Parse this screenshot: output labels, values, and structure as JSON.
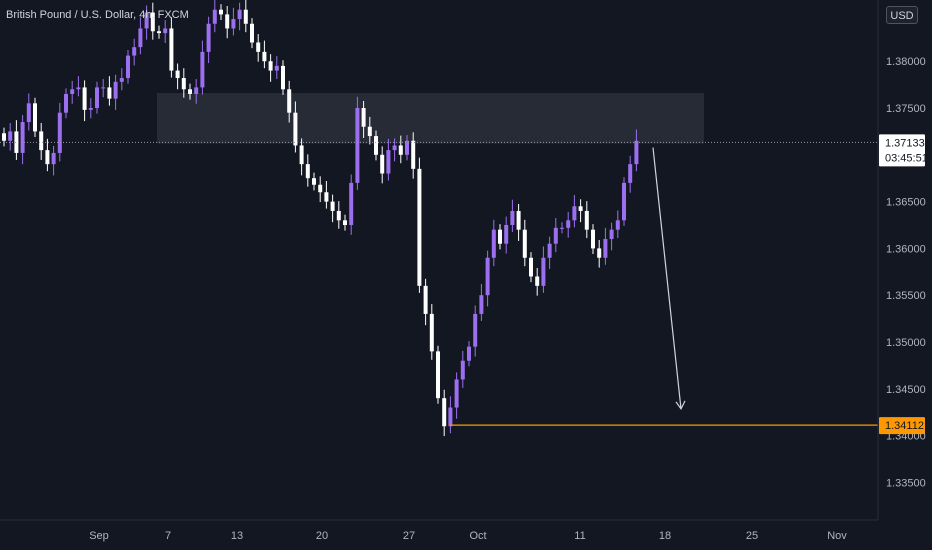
{
  "header": {
    "symbol_title": "British Pound / U.S. Dollar, 4h, FXCM",
    "currency": "USD"
  },
  "price_axis": {
    "ticks": [
      "1.38000",
      "1.37500",
      "1.36500",
      "1.36000",
      "1.35500",
      "1.35000",
      "1.34500",
      "1.34000",
      "1.33500"
    ],
    "current_price": "1.37133",
    "countdown": "03:45:51",
    "level_label": "1.34112"
  },
  "time_axis": {
    "ticks": [
      "Sep",
      "7",
      "13",
      "20",
      "27",
      "Oct",
      "11",
      "18",
      "25",
      "Nov"
    ]
  },
  "colors": {
    "background": "#131722",
    "bull_candle": "#9c6ff0",
    "bear_candle": "#ffffff",
    "zone_fill": "#2a2e39",
    "level_line": "#ff9800",
    "price_label_bg": "#ffffff",
    "price_label_text": "#131722",
    "axis_text": "#b2b5be"
  },
  "chart_data": {
    "type": "candlestick",
    "title": "British Pound / U.S. Dollar, 4h, FXCM",
    "ylabel": "USD",
    "ylim": [
      1.33,
      1.386
    ],
    "series": [
      {
        "values": [
          1.3715,
          1.3725,
          1.3702,
          1.3735,
          1.3755,
          1.3725,
          1.3705,
          1.369,
          1.3702,
          1.3745,
          1.3765,
          1.377,
          1.3772,
          1.3748,
          1.375,
          1.3772,
          1.3772,
          1.376,
          1.3778,
          1.3782,
          1.3806,
          1.3815,
          1.3835,
          1.3852,
          1.3832,
          1.383,
          1.3835,
          1.379,
          1.3782,
          1.377,
          1.3765,
          1.3772,
          1.381,
          1.384,
          1.3855,
          1.385,
          1.3835,
          1.3845,
          1.3855,
          1.384,
          1.382,
          1.381,
          1.38,
          1.379,
          1.3795,
          1.377,
          1.3745,
          1.371,
          1.369,
          1.3675,
          1.3668,
          1.366,
          1.365,
          1.364,
          1.363,
          1.3625,
          1.367,
          1.375,
          1.373,
          1.372,
          1.37,
          1.368,
          1.3705,
          1.371,
          1.37,
          1.3715,
          1.3685,
          1.356,
          1.353,
          1.349,
          1.344,
          1.341,
          1.343,
          1.346,
          1.348,
          1.3495,
          1.353,
          1.355,
          1.359,
          1.362,
          1.3605,
          1.3625,
          1.364,
          1.362,
          1.359,
          1.357,
          1.356,
          1.359,
          1.3605,
          1.3622,
          1.3622,
          1.363,
          1.3645,
          1.364,
          1.362,
          1.36,
          1.359,
          1.361,
          1.362,
          1.363,
          1.367,
          1.369,
          1.3715
        ]
      }
    ],
    "zone": {
      "low": 1.3712,
      "high": 1.3766
    },
    "level": 1.34112,
    "current_price": 1.37133,
    "projection": {
      "from": 1.3712,
      "to": 1.3435
    },
    "xlabel": "",
    "grid": false,
    "legend": "none"
  }
}
